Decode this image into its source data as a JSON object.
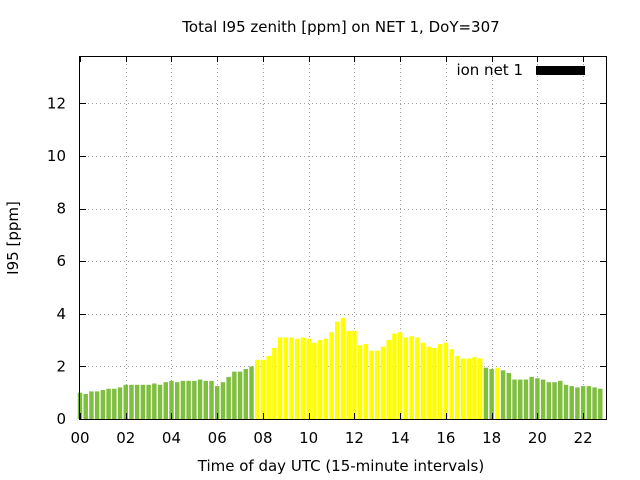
{
  "chart_data": {
    "type": "bar",
    "title": "Total I95 zenith [ppm] on NET 1, DoY=307",
    "xlabel": "Time of day UTC (15-minute intervals)",
    "ylabel": "I95 [ppm]",
    "xlim": [
      0,
      23
    ],
    "ylim": [
      0,
      13.8
    ],
    "x_ticks": [
      0,
      2,
      4,
      6,
      8,
      10,
      12,
      14,
      16,
      18,
      20,
      22
    ],
    "x_tick_labels": [
      "00",
      "02",
      "04",
      "06",
      "08",
      "10",
      "12",
      "14",
      "16",
      "18",
      "20",
      "22"
    ],
    "y_ticks": [
      0,
      2,
      4,
      6,
      8,
      10,
      12
    ],
    "y_tick_labels": [
      "0",
      "2",
      "4",
      "6",
      "8",
      "10",
      "12"
    ],
    "grid": true,
    "legend": {
      "position": "top-right",
      "label": "ion net 1",
      "color": "#000000"
    },
    "colors": {
      "low": "#7fbf3f",
      "high": "#ffff00"
    },
    "bar_interval_hours": 0.25,
    "series": [
      {
        "name": "ion net 1",
        "start_hour": 0,
        "values": [
          1.0,
          0.95,
          1.05,
          1.05,
          1.1,
          1.15,
          1.15,
          1.2,
          1.3,
          1.3,
          1.3,
          1.3,
          1.3,
          1.35,
          1.3,
          1.4,
          1.45,
          1.4,
          1.45,
          1.45,
          1.45,
          1.5,
          1.45,
          1.45,
          1.25,
          1.4,
          1.6,
          1.8,
          1.8,
          1.9,
          2.0,
          2.25,
          2.25,
          2.4,
          2.7,
          3.1,
          3.1,
          3.1,
          3.05,
          3.1,
          3.05,
          2.9,
          3.0,
          3.05,
          3.3,
          3.7,
          3.85,
          3.35,
          3.35,
          2.8,
          2.85,
          2.6,
          2.6,
          2.75,
          3.0,
          3.25,
          3.3,
          3.1,
          3.15,
          3.1,
          2.9,
          2.75,
          2.7,
          2.85,
          2.9,
          2.65,
          2.4,
          2.3,
          2.3,
          2.35,
          2.3,
          1.95,
          1.9,
          1.95,
          1.85,
          1.75,
          1.5,
          1.5,
          1.5,
          1.6,
          1.55,
          1.5,
          1.4,
          1.4,
          1.45,
          1.3,
          1.25,
          1.2,
          1.25,
          1.25,
          1.2,
          1.15
        ],
        "bar_colors": [
          "low",
          "low",
          "low",
          "low",
          "low",
          "low",
          "low",
          "low",
          "low",
          "low",
          "low",
          "low",
          "low",
          "low",
          "low",
          "low",
          "low",
          "low",
          "low",
          "low",
          "low",
          "low",
          "low",
          "low",
          "low",
          "low",
          "low",
          "low",
          "low",
          "low",
          "low",
          "high",
          "high",
          "high",
          "high",
          "high",
          "high",
          "high",
          "high",
          "high",
          "high",
          "high",
          "high",
          "high",
          "high",
          "high",
          "high",
          "high",
          "high",
          "high",
          "high",
          "high",
          "high",
          "high",
          "high",
          "high",
          "high",
          "high",
          "high",
          "high",
          "high",
          "high",
          "high",
          "high",
          "high",
          "high",
          "high",
          "high",
          "high",
          "high",
          "high",
          "low",
          "low",
          "high",
          "low",
          "low",
          "low",
          "low",
          "low",
          "low",
          "low",
          "low",
          "low",
          "low",
          "low",
          "low",
          "low",
          "low",
          "low",
          "low",
          "low",
          "low"
        ]
      }
    ]
  }
}
